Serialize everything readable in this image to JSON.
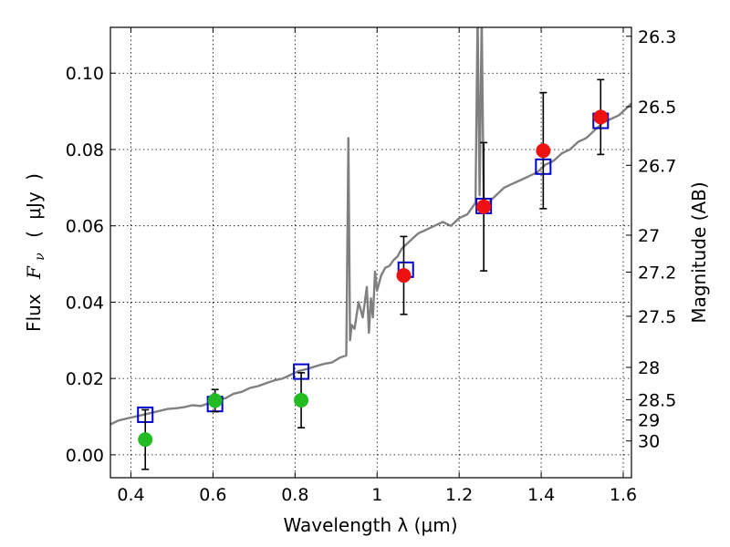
{
  "chart_data": {
    "type": "scatter",
    "title": "",
    "xlabel": "Wavelength  λ (μm)",
    "ylabel": "Flux  F_ν  ( μJy )",
    "ylabel_parts": {
      "prefix": "Flux",
      "symbol": "F",
      "subscript": "ν",
      "unit_open": "(",
      "unit": "μJy",
      "unit_close": ")"
    },
    "ylabel_right": "Magnitude (AB)",
    "xlim": [
      0.35,
      1.62
    ],
    "ylim": [
      -0.006,
      0.112
    ],
    "grid": true,
    "x_ticks": [
      0.4,
      0.6,
      0.8,
      1.0,
      1.2,
      1.4,
      1.6
    ],
    "x_tick_labels": [
      "0.4",
      "0.6",
      "0.8",
      "1",
      "1.2",
      "1.4",
      "1.6"
    ],
    "y_ticks": [
      0.0,
      0.02,
      0.04,
      0.06,
      0.08,
      0.1
    ],
    "y_tick_labels": [
      "0.00",
      "0.02",
      "0.04",
      "0.06",
      "0.08",
      "0.10"
    ],
    "right_ticks": [
      {
        "mag": 26.3,
        "label": "26.3"
      },
      {
        "mag": 26.5,
        "label": "26.5"
      },
      {
        "mag": 26.7,
        "label": "26.7"
      },
      {
        "mag": 27.0,
        "label": "27"
      },
      {
        "mag": 27.2,
        "label": "27.2"
      },
      {
        "mag": 27.5,
        "label": "27.5"
      },
      {
        "mag": 28.0,
        "label": "28"
      },
      {
        "mag": 28.5,
        "label": "28.5"
      },
      {
        "mag": 29.0,
        "label": "29"
      },
      {
        "mag": 30.0,
        "label": "30"
      }
    ],
    "series": [
      {
        "marker": "line",
        "color": "#808080",
        "x": [
          0.35,
          0.37,
          0.39,
          0.41,
          0.43,
          0.45,
          0.47,
          0.49,
          0.51,
          0.53,
          0.55,
          0.57,
          0.59,
          0.61,
          0.63,
          0.65,
          0.67,
          0.69,
          0.71,
          0.73,
          0.75,
          0.77,
          0.79,
          0.81,
          0.83,
          0.85,
          0.87,
          0.89,
          0.91,
          0.925,
          0.93,
          0.934,
          0.938,
          0.945,
          0.955,
          0.965,
          0.975,
          0.98,
          0.985,
          0.99,
          0.995,
          1.0,
          1.01,
          1.02,
          1.03,
          1.04,
          1.05,
          1.06,
          1.07,
          1.08,
          1.09,
          1.1,
          1.12,
          1.14,
          1.16,
          1.18,
          1.2,
          1.22,
          1.24,
          1.245,
          1.25,
          1.255,
          1.26,
          1.265,
          1.27,
          1.29,
          1.31,
          1.33,
          1.35,
          1.37,
          1.39,
          1.41,
          1.43,
          1.45,
          1.47,
          1.49,
          1.51,
          1.53,
          1.55,
          1.57,
          1.59,
          1.61,
          1.62
        ],
        "y": [
          0.008,
          0.009,
          0.0095,
          0.01,
          0.0105,
          0.011,
          0.0115,
          0.012,
          0.0122,
          0.0125,
          0.013,
          0.0128,
          0.0135,
          0.0142,
          0.0148,
          0.016,
          0.0165,
          0.0175,
          0.018,
          0.0188,
          0.0195,
          0.02,
          0.021,
          0.022,
          0.0225,
          0.0232,
          0.0238,
          0.0242,
          0.0255,
          0.026,
          0.083,
          0.03,
          0.034,
          0.033,
          0.04,
          0.036,
          0.044,
          0.032,
          0.041,
          0.036,
          0.048,
          0.043,
          0.047,
          0.049,
          0.0495,
          0.051,
          0.052,
          0.054,
          0.055,
          0.056,
          0.057,
          0.058,
          0.059,
          0.06,
          0.061,
          0.06,
          0.062,
          0.063,
          0.066,
          0.115,
          0.068,
          0.115,
          0.066,
          0.064,
          0.066,
          0.068,
          0.07,
          0.071,
          0.072,
          0.073,
          0.074,
          0.076,
          0.077,
          0.079,
          0.08,
          0.082,
          0.083,
          0.085,
          0.087,
          0.088,
          0.089,
          0.091,
          0.092
        ]
      },
      {
        "marker": "open-square",
        "color": "#0000cc",
        "x": [
          0.435,
          0.605,
          0.815,
          1.07,
          1.26,
          1.405,
          1.545
        ],
        "y": [
          0.0105,
          0.0133,
          0.0218,
          0.0485,
          0.0652,
          0.0755,
          0.0875
        ]
      },
      {
        "marker": "filled-circle",
        "color": "#22bb22",
        "x": [
          0.435,
          0.605,
          0.815
        ],
        "y": [
          0.004,
          0.0142,
          0.0143
        ],
        "yerr": [
          0.0078,
          0.0029,
          0.0072
        ]
      },
      {
        "marker": "filled-circle",
        "color": "#ee1111",
        "x": [
          1.065,
          1.26,
          1.405,
          1.545
        ],
        "y": [
          0.047,
          0.065,
          0.0797,
          0.0885
        ],
        "yerr": [
          0.0102,
          0.0168,
          0.0152,
          0.0098
        ]
      }
    ]
  }
}
